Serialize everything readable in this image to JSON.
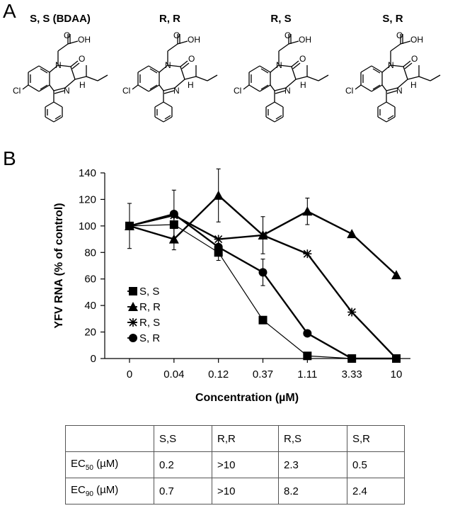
{
  "panel_a": {
    "letter": "A",
    "structures": [
      {
        "title": "S, S (BDAA)",
        "stereo": "S,S"
      },
      {
        "title": "R, R",
        "stereo": "R,R"
      },
      {
        "title": "R, S",
        "stereo": "R,S"
      },
      {
        "title": "S, R",
        "stereo": "S,R"
      }
    ],
    "atom_labels": {
      "o": "O",
      "oh": "OH",
      "n": "N",
      "cl": "Cl",
      "h": "H"
    }
  },
  "panel_b": {
    "letter": "B"
  },
  "chart_data": {
    "type": "line",
    "title": "",
    "xlabel": "Concentration (µM)",
    "ylabel": "YFV RNA (% of control)",
    "categories": [
      "0",
      "0.04",
      "0.12",
      "0.37",
      "1.11",
      "3.33",
      "10"
    ],
    "ylim": [
      0,
      140
    ],
    "yticks": [
      0,
      20,
      40,
      60,
      80,
      100,
      120,
      140
    ],
    "grid": false,
    "legend_placement": "lower-left",
    "series": [
      {
        "name": "S, S",
        "marker": "square",
        "values": [
          100,
          101,
          80,
          29,
          2,
          0,
          0
        ],
        "errors": [
          0,
          0,
          6,
          0,
          0,
          0,
          0
        ]
      },
      {
        "name": "R, R",
        "marker": "triangle",
        "values": [
          100,
          90,
          123,
          93,
          111,
          94,
          63
        ],
        "errors": [
          0,
          8,
          20,
          14,
          10,
          0,
          0
        ]
      },
      {
        "name": "R, S",
        "marker": "star",
        "values": [
          100,
          108,
          90,
          93,
          79,
          35,
          0
        ],
        "errors": [
          0,
          0,
          0,
          0,
          0,
          0,
          0
        ]
      },
      {
        "name": "S, R",
        "marker": "circle",
        "values": [
          100,
          109,
          84,
          65,
          19,
          0,
          0
        ],
        "errors": [
          17,
          18,
          0,
          10,
          0,
          0,
          0
        ]
      }
    ]
  },
  "table": {
    "headers": [
      "",
      "S,S",
      "R,R",
      "R,S",
      "S,R"
    ],
    "rows": [
      {
        "label_main": "EC",
        "label_sub": "50",
        "label_unit": " (µM)",
        "values": [
          "0.2",
          ">10",
          "2.3",
          "0.5"
        ]
      },
      {
        "label_main": "EC",
        "label_sub": "90",
        "label_unit": " (µM)",
        "values": [
          "0.7",
          ">10",
          "8.2",
          "2.4"
        ]
      }
    ]
  }
}
